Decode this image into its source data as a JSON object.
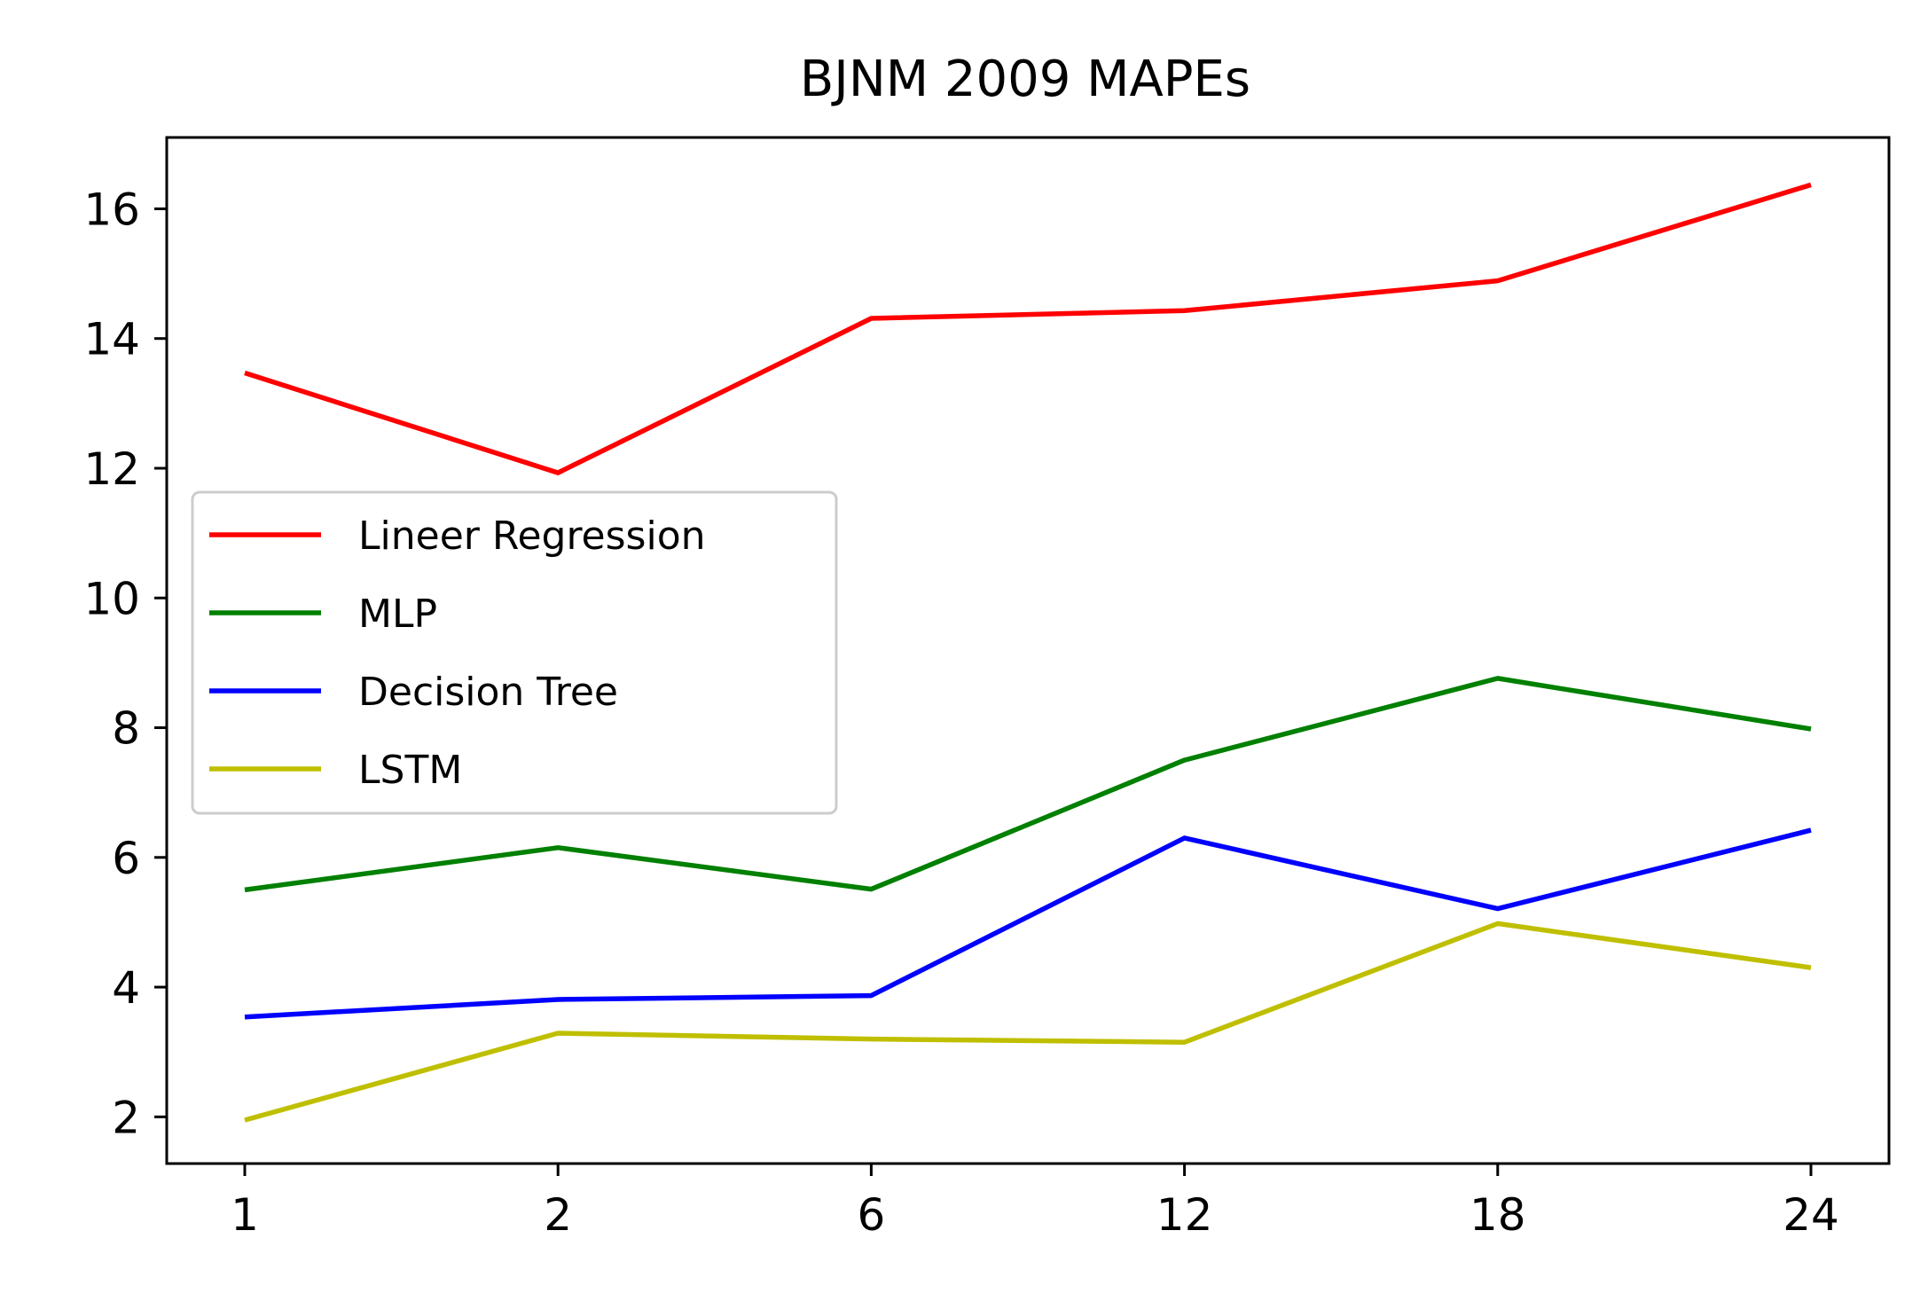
{
  "chart_data": {
    "type": "line",
    "title": "BJNM  2009 MAPEs",
    "xlabel": "",
    "ylabel": "",
    "categories": [
      "1",
      "2",
      "6",
      "12",
      "18",
      "24"
    ],
    "ylim": [
      1.28,
      17.1
    ],
    "yticks": [
      "2",
      "4",
      "6",
      "8",
      "10",
      "12",
      "14",
      "16"
    ],
    "grid": false,
    "legend_position": "center-left",
    "series": [
      {
        "name": "Lineer Regression",
        "color": "#ff0000",
        "values": [
          13.47,
          11.93,
          14.31,
          14.43,
          14.89,
          16.37
        ]
      },
      {
        "name": "MLP",
        "color": "#008000",
        "values": [
          5.5,
          6.15,
          5.51,
          7.5,
          8.76,
          7.98
        ]
      },
      {
        "name": "Decision Tree",
        "color": "#0000ff",
        "values": [
          3.54,
          3.81,
          3.87,
          6.3,
          5.21,
          6.42
        ]
      },
      {
        "name": "LSTM",
        "color": "#bfbf00",
        "values": [
          1.95,
          3.29,
          3.2,
          3.15,
          4.98,
          4.3
        ]
      }
    ]
  }
}
